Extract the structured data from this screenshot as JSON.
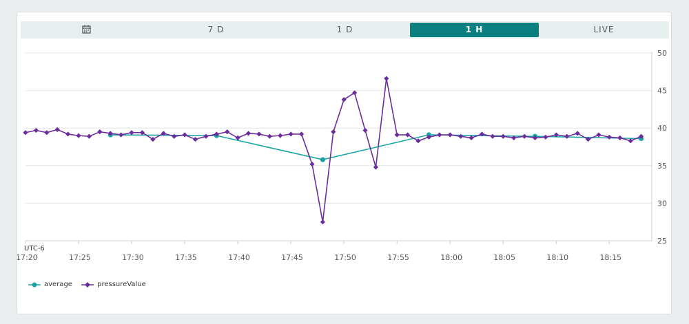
{
  "tabs": [
    {
      "label": "",
      "icon": "calendar-icon",
      "active": false
    },
    {
      "label": "7 D",
      "active": false
    },
    {
      "label": "1 D",
      "active": false
    },
    {
      "label": "1 H",
      "active": true
    },
    {
      "label": "LIVE",
      "active": false
    }
  ],
  "colors": {
    "accent": "#0a8080",
    "average": "#1aa5a5",
    "pressureValue": "#6b2d9c",
    "grid": "#e4e4e4"
  },
  "chart_data": {
    "type": "line",
    "timezone_label": "UTC-6",
    "x_ticks": [
      "17:20",
      "17:25",
      "17:30",
      "17:35",
      "17:40",
      "17:45",
      "17:50",
      "17:55",
      "18:00",
      "18:05",
      "18:10",
      "18:15"
    ],
    "y_ticks": [
      "25",
      "30",
      "35",
      "40",
      "45",
      "50"
    ],
    "xlim": [
      "17:20",
      "18:19"
    ],
    "ylim": [
      25,
      50
    ],
    "y_axis_side": "right",
    "grid": true,
    "legend_position": "bottom-left",
    "series": [
      {
        "name": "average",
        "points": [
          [
            "17:28",
            39.1
          ],
          [
            "17:38",
            39.0
          ],
          [
            "17:48",
            35.8
          ],
          [
            "17:58",
            39.1
          ],
          [
            "18:08",
            38.9
          ],
          [
            "18:18",
            38.6
          ]
        ]
      },
      {
        "name": "pressureValue",
        "points": [
          [
            "17:20",
            39.4
          ],
          [
            "17:21",
            39.7
          ],
          [
            "17:22",
            39.4
          ],
          [
            "17:23",
            39.8
          ],
          [
            "17:24",
            39.2
          ],
          [
            "17:25",
            39.0
          ],
          [
            "17:26",
            38.9
          ],
          [
            "17:27",
            39.5
          ],
          [
            "17:28",
            39.3
          ],
          [
            "17:29",
            39.1
          ],
          [
            "17:30",
            39.4
          ],
          [
            "17:31",
            39.4
          ],
          [
            "17:32",
            38.5
          ],
          [
            "17:33",
            39.3
          ],
          [
            "17:34",
            38.9
          ],
          [
            "17:35",
            39.1
          ],
          [
            "17:36",
            38.5
          ],
          [
            "17:37",
            38.9
          ],
          [
            "17:38",
            39.2
          ],
          [
            "17:39",
            39.5
          ],
          [
            "17:40",
            38.7
          ],
          [
            "17:41",
            39.3
          ],
          [
            "17:42",
            39.2
          ],
          [
            "17:43",
            38.9
          ],
          [
            "17:44",
            39.0
          ],
          [
            "17:45",
            39.2
          ],
          [
            "17:46",
            39.2
          ],
          [
            "17:47",
            35.2
          ],
          [
            "17:48",
            27.5
          ],
          [
            "17:49",
            39.5
          ],
          [
            "17:50",
            43.8
          ],
          [
            "17:51",
            44.7
          ],
          [
            "17:52",
            39.7
          ],
          [
            "17:53",
            34.8
          ],
          [
            "17:54",
            46.6
          ],
          [
            "17:55",
            39.1
          ],
          [
            "17:56",
            39.1
          ],
          [
            "17:57",
            38.3
          ],
          [
            "17:58",
            38.8
          ],
          [
            "17:59",
            39.1
          ],
          [
            "18:00",
            39.1
          ],
          [
            "18:01",
            38.9
          ],
          [
            "18:02",
            38.7
          ],
          [
            "18:03",
            39.2
          ],
          [
            "18:04",
            38.9
          ],
          [
            "18:05",
            38.9
          ],
          [
            "18:06",
            38.7
          ],
          [
            "18:07",
            38.9
          ],
          [
            "18:08",
            38.7
          ],
          [
            "18:09",
            38.8
          ],
          [
            "18:10",
            39.1
          ],
          [
            "18:11",
            38.9
          ],
          [
            "18:12",
            39.3
          ],
          [
            "18:13",
            38.5
          ],
          [
            "18:14",
            39.1
          ],
          [
            "18:15",
            38.8
          ],
          [
            "18:16",
            38.7
          ],
          [
            "18:17",
            38.3
          ],
          [
            "18:18",
            38.9
          ]
        ]
      }
    ]
  }
}
